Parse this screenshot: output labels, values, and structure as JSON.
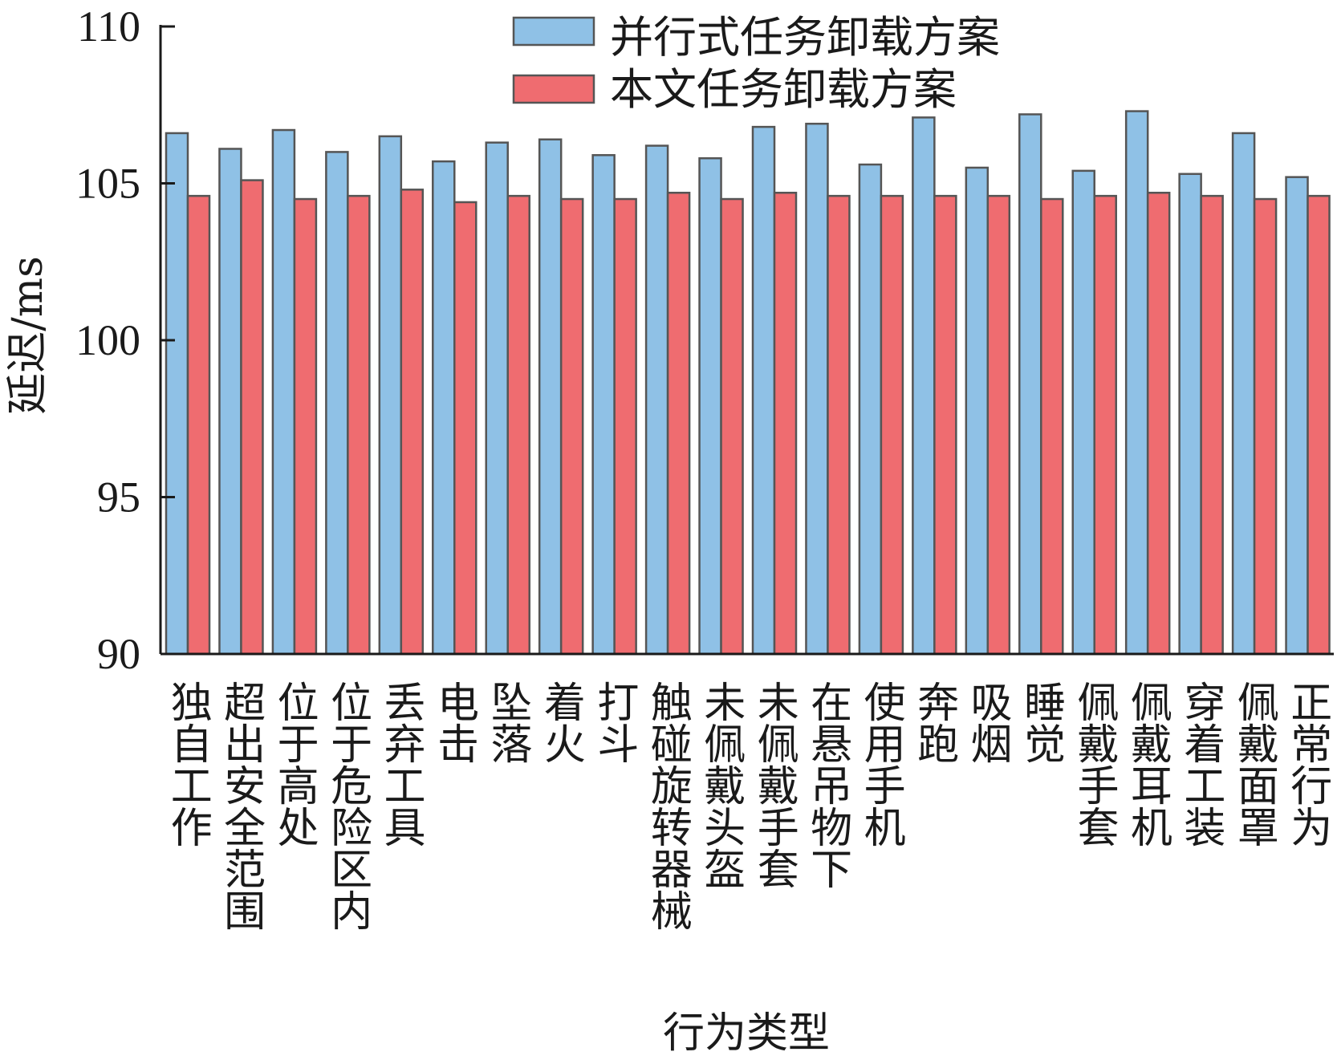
{
  "chart_data": {
    "type": "bar",
    "title": "",
    "xlabel": "行为类型",
    "ylabel": "延迟/ms",
    "ylim": [
      90,
      110
    ],
    "yticks": [
      90,
      95,
      100,
      105,
      110
    ],
    "grid": false,
    "legend_position": "top-center",
    "categories": [
      [
        "独自工作"
      ],
      [
        "超出安全范围"
      ],
      [
        "位于高处"
      ],
      [
        "位于危险区内"
      ],
      [
        "丢弃工具"
      ],
      [
        "电击"
      ],
      [
        "坠落"
      ],
      [
        "着火"
      ],
      [
        "打斗"
      ],
      [
        "触碰旋转器械"
      ],
      [
        "未佩戴头盔"
      ],
      [
        "未佩戴手套"
      ],
      [
        "在悬吊物下"
      ],
      [
        "使用手机"
      ],
      [
        "奔跑"
      ],
      [
        "吸烟"
      ],
      [
        "睡觉"
      ],
      [
        "佩戴手套"
      ],
      [
        "佩戴耳机"
      ],
      [
        "穿着工装"
      ],
      [
        "佩戴面罩"
      ],
      [
        "正常行为"
      ]
    ],
    "series": [
      {
        "name": "并行式任务卸载方案",
        "color": "#8fc1e6",
        "values": [
          106.6,
          106.1,
          106.7,
          106.0,
          106.5,
          105.7,
          106.3,
          106.4,
          105.9,
          106.2,
          105.8,
          106.8,
          106.9,
          105.6,
          107.1,
          105.5,
          107.2,
          105.4,
          107.3,
          105.3,
          106.6,
          105.2
        ]
      },
      {
        "name": "本文任务卸载方案",
        "color": "#ef6c70",
        "values": [
          104.6,
          105.1,
          104.5,
          104.6,
          104.8,
          104.4,
          104.6,
          104.5,
          104.5,
          104.7,
          104.5,
          104.7,
          104.6,
          104.6,
          104.6,
          104.6,
          104.5,
          104.6,
          104.7,
          104.6,
          104.5,
          104.6
        ]
      }
    ]
  }
}
